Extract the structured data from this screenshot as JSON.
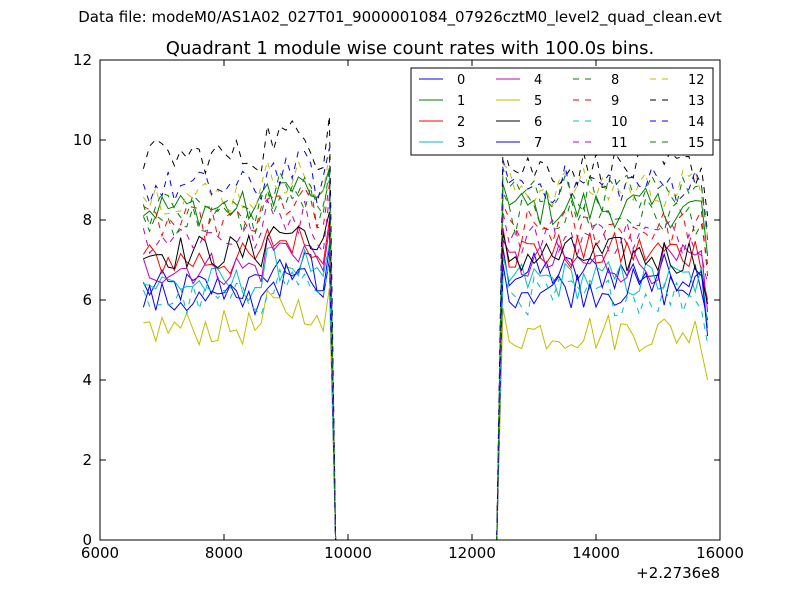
{
  "supertitle": "Data file: modeM0/AS1A02_027T01_9000001084_07926cztM0_level2_quad_clean.evt",
  "chart_data": {
    "type": "line",
    "title": "Quadrant 1 module wise count rates with 100.0s bins.",
    "xlabel": "",
    "ylabel": "",
    "x_offset_label": "+2.2736e8",
    "xlim": [
      6000,
      16000
    ],
    "ylim": [
      0,
      12
    ],
    "xticks": [
      "6000",
      "8000",
      "10000",
      "12000",
      "14000",
      "16000"
    ],
    "yticks": [
      "0",
      "2",
      "4",
      "6",
      "8",
      "10",
      "12"
    ],
    "grid": false,
    "legend_position": "top-right",
    "legend_columns": 4,
    "segments": [
      [
        6700,
        9700,
        100
      ],
      [
        12500,
        15800,
        100
      ]
    ],
    "gap": {
      "x": [
        9800,
        12400
      ],
      "y": 0
    },
    "series": [
      {
        "name": "0",
        "color": "#0000ff",
        "dash": "solid",
        "level": 6.3,
        "second_level": 6.7
      },
      {
        "name": "1",
        "color": "#008000",
        "dash": "solid",
        "level": 8.3,
        "second_level": 8.3
      },
      {
        "name": "2",
        "color": "#ff0000",
        "dash": "solid",
        "level": 7.0,
        "second_level": 7.2
      },
      {
        "name": "3",
        "color": "#00bfbf",
        "dash": "solid",
        "level": 6.4,
        "second_level": 6.5
      },
      {
        "name": "4",
        "color": "#bf00bf",
        "dash": "solid",
        "level": 6.8,
        "second_level": 6.9
      },
      {
        "name": "5",
        "color": "#bfbf00",
        "dash": "solid",
        "level": 5.3,
        "second_level": 5.2
      },
      {
        "name": "6",
        "color": "#000000",
        "dash": "solid",
        "level": 7.2,
        "second_level": 7.1
      },
      {
        "name": "7",
        "color": "#0000ff",
        "dash": "solid",
        "level": 6.0,
        "second_level": 6.3
      },
      {
        "name": "8",
        "color": "#008000",
        "dash": "dashed",
        "level": 8.0,
        "second_level": 8.1
      },
      {
        "name": "9",
        "color": "#ff0000",
        "dash": "dashed",
        "level": 7.9,
        "second_level": 7.8
      },
      {
        "name": "10",
        "color": "#00bfbf",
        "dash": "dashed",
        "level": 6.0,
        "second_level": 6.1
      },
      {
        "name": "11",
        "color": "#bf00bf",
        "dash": "dashed",
        "level": 7.6,
        "second_level": 7.6
      },
      {
        "name": "12",
        "color": "#bfbf00",
        "dash": "dashed",
        "level": 8.6,
        "second_level": 8.8
      },
      {
        "name": "13",
        "color": "#000000",
        "dash": "dashed",
        "level": 9.6,
        "second_level": 9.3
      },
      {
        "name": "14",
        "color": "#0000ff",
        "dash": "dashed",
        "level": 8.8,
        "second_level": 8.9
      },
      {
        "name": "15",
        "color": "#008000",
        "dash": "dashed",
        "level": 8.3,
        "second_level": 8.7
      }
    ]
  }
}
